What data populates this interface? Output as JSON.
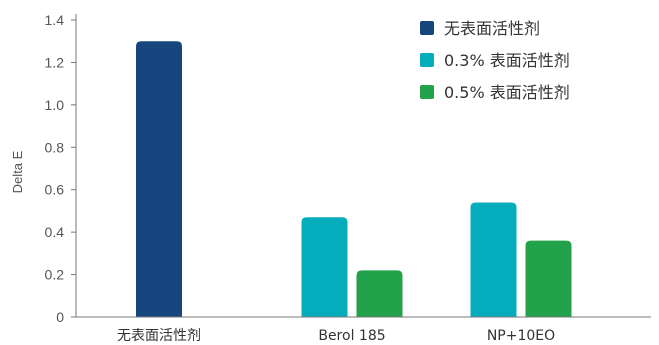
{
  "chart_data": {
    "type": "bar",
    "title": "",
    "xlabel": "",
    "ylabel": "Delta E",
    "ylim": [
      0,
      1.4
    ],
    "yticks": [
      "0",
      "0.2",
      "0.4",
      "0.6",
      "0.8",
      "1.0",
      "1.2",
      "1.4"
    ],
    "categories": [
      "无表面活性剂",
      "Berol 185",
      "NP+10EO"
    ],
    "legend_position": "top-right",
    "grid": false,
    "series": [
      {
        "name": "无表面活性剂",
        "color": "#16467d",
        "values": [
          1.3,
          null,
          null
        ]
      },
      {
        "name": "0.3%  表面活性剂",
        "color": "#05adbc",
        "values": [
          null,
          0.47,
          0.54
        ]
      },
      {
        "name": "0.5%  表面活性剂",
        "color": "#22a24a",
        "values": [
          null,
          0.22,
          0.36
        ]
      }
    ]
  }
}
